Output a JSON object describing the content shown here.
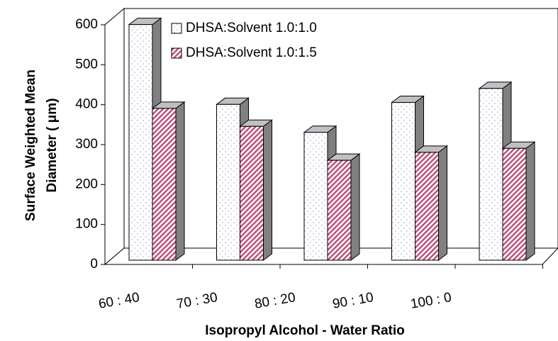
{
  "chart_data": {
    "type": "bar3d",
    "y_label": [
      "Surface Weighted Mean",
      "Diameter ( μm)"
    ],
    "x_label": "Isopropyl Alcohol - Water Ratio",
    "categories": [
      "60 : 40",
      "70 : 30",
      "80 : 20",
      "90 : 10",
      "100 : 0"
    ],
    "series": [
      {
        "name": "DHSA:Solvent 1.0:1.0",
        "color": "#ffffff",
        "values": [
          590,
          390,
          320,
          395,
          430
        ]
      },
      {
        "name": "DHSA:Solvent 1.0:1.5",
        "color": "#c0507a",
        "values": [
          380,
          335,
          250,
          270,
          280
        ]
      }
    ],
    "ylim": [
      0,
      600
    ],
    "yticks": [
      0,
      100,
      200,
      300,
      400,
      500,
      600
    ],
    "grid": false
  }
}
